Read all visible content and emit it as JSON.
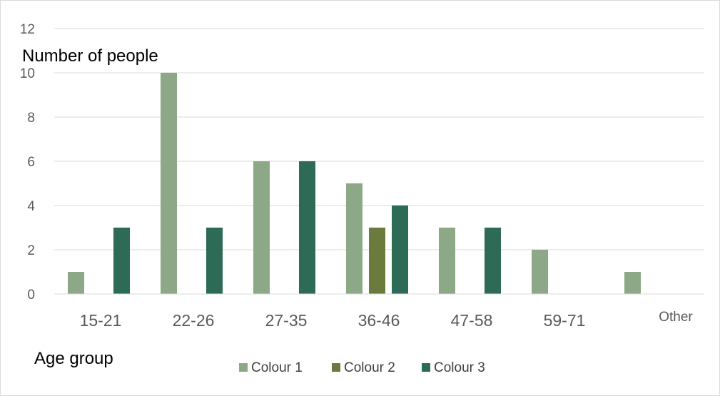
{
  "chart_data": {
    "type": "bar",
    "title": "",
    "xlabel": "Age group",
    "ylabel": "Number of people",
    "categories": [
      "15-21",
      "22-26",
      "27-35",
      "36-46",
      "47-58",
      "59-71",
      "Other"
    ],
    "series": [
      {
        "name": "Colour 1",
        "color": "#8da887",
        "values": [
          1,
          10,
          6,
          5,
          3,
          2,
          1
        ]
      },
      {
        "name": "Colour 2",
        "color": "#6b7a3d",
        "values": [
          0,
          0,
          0,
          3,
          0,
          0,
          0
        ]
      },
      {
        "name": "Colour 3",
        "color": "#2e6b57",
        "values": [
          3,
          3,
          6,
          4,
          3,
          0,
          0
        ]
      }
    ],
    "ylim": [
      0,
      12
    ],
    "yticks": [
      0,
      2,
      4,
      6,
      8,
      10,
      12
    ],
    "grid": true,
    "legend_position": "bottom"
  }
}
